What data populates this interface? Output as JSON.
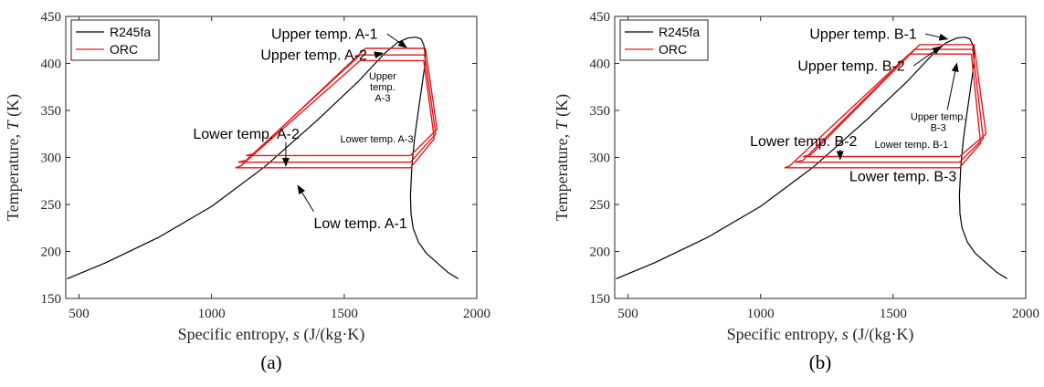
{
  "chart_data": [
    {
      "type": "line",
      "panel_label": "(a)",
      "xlabel": "Specific entropy, s (J/(kg·K)",
      "xlabel_parts": [
        "Specific entropy, ",
        "s",
        " (J/(kg·K)"
      ],
      "ylabel": "Temperature, T (K)",
      "ylabel_parts": [
        "Temperature, ",
        "T",
        " (K)"
      ],
      "xlim": [
        450,
        2000
      ],
      "ylim": [
        150,
        450
      ],
      "xticks": [
        500,
        1000,
        1500,
        2000
      ],
      "yticks": [
        150,
        200,
        250,
        300,
        350,
        400,
        450
      ],
      "grid": false,
      "legend_position": "top-left",
      "legend": [
        {
          "name": "R245fa",
          "color": "#000000"
        },
        {
          "name": "ORC",
          "color": "#e41a1c"
        }
      ],
      "dome": {
        "name": "R245fa",
        "color": "#000000",
        "x": [
          455,
          600,
          800,
          1000,
          1200,
          1400,
          1550,
          1650,
          1700,
          1740,
          1770,
          1790,
          1800,
          1805,
          1805,
          1795,
          1780,
          1765,
          1755,
          1750,
          1752,
          1760,
          1780,
          1810,
          1850,
          1890,
          1930
        ],
        "y": [
          171,
          188,
          215,
          248,
          290,
          340,
          380,
          410,
          422,
          427,
          428,
          426,
          420,
          410,
          400,
          380,
          350,
          320,
          290,
          260,
          240,
          225,
          210,
          198,
          188,
          178,
          171
        ]
      },
      "cycles": [
        {
          "name": "ORC",
          "color": "#e41a1c",
          "x": [
            1090,
            1110,
            1560,
            1615,
            1800,
            1840,
            1750,
            1090
          ],
          "y": [
            289,
            291,
            403,
            403,
            403,
            320,
            289,
            289
          ]
        },
        {
          "name": "ORC",
          "color": "#e41a1c",
          "x": [
            1100,
            1130,
            1560,
            1620,
            1803,
            1845,
            1750,
            1100
          ],
          "y": [
            295,
            297,
            409,
            409,
            409,
            325,
            295,
            295
          ]
        },
        {
          "name": "ORC",
          "color": "#e41a1c",
          "x": [
            1130,
            1160,
            1580,
            1630,
            1806,
            1850,
            1750,
            1130
          ],
          "y": [
            302,
            304,
            416,
            416,
            416,
            330,
            302,
            302
          ]
        }
      ],
      "annotations": [
        {
          "text": "Upper temp. A-1",
          "font_size": "large",
          "tx": 1225,
          "ty": 426,
          "ax": 1735,
          "ay": 417
        },
        {
          "text": "Upper temp. A-2",
          "font_size": "large",
          "tx": 1185,
          "ty": 404,
          "ax": 1645,
          "ay": 411
        },
        {
          "text": "Upper\ntemp.\nA-3",
          "font_size": "small",
          "tx": 1645,
          "ty": 383
        },
        {
          "text": "Lower temp. A-2",
          "font_size": "large",
          "tx": 930,
          "ty": 320,
          "ax": 1280,
          "ay": 291
        },
        {
          "text": "Lower temp. A-3",
          "font_size": "small",
          "tx": 1485,
          "ty": 316
        },
        {
          "text": "Low temp. A-1",
          "font_size": "large",
          "tx": 1385,
          "ty": 225,
          "ax": 1325,
          "ay": 270
        }
      ]
    },
    {
      "type": "line",
      "panel_label": "(b)",
      "xlabel": "Specific entropy, s (J/(kg·K)",
      "xlabel_parts": [
        "Specific entropy, ",
        "s",
        " (J/(kg·K)"
      ],
      "ylabel": "Temperature, T (K)",
      "ylabel_parts": [
        "Temperature, ",
        "T",
        " (K)"
      ],
      "xlim": [
        450,
        2000
      ],
      "ylim": [
        150,
        450
      ],
      "xticks": [
        500,
        1000,
        1500,
        2000
      ],
      "yticks": [
        150,
        200,
        250,
        300,
        350,
        400,
        450
      ],
      "grid": false,
      "legend_position": "top-left",
      "legend": [
        {
          "name": "R245fa",
          "color": "#000000"
        },
        {
          "name": "ORC",
          "color": "#e41a1c"
        }
      ],
      "dome": {
        "name": "R245fa",
        "color": "#000000",
        "x": [
          455,
          600,
          800,
          1000,
          1200,
          1400,
          1550,
          1650,
          1700,
          1740,
          1770,
          1790,
          1800,
          1805,
          1805,
          1795,
          1780,
          1765,
          1755,
          1750,
          1752,
          1760,
          1780,
          1810,
          1850,
          1890,
          1930
        ],
        "y": [
          171,
          188,
          215,
          248,
          290,
          340,
          380,
          410,
          422,
          427,
          428,
          426,
          420,
          410,
          400,
          380,
          350,
          320,
          290,
          260,
          240,
          225,
          210,
          198,
          188,
          178,
          171
        ]
      },
      "cycles": [
        {
          "name": "ORC",
          "color": "#e41a1c",
          "x": [
            1090,
            1110,
            1560,
            1620,
            1795,
            1830,
            1750,
            1090
          ],
          "y": [
            289,
            291,
            410,
            410,
            410,
            315,
            289,
            289
          ]
        },
        {
          "name": "ORC",
          "color": "#e41a1c",
          "x": [
            1130,
            1160,
            1580,
            1640,
            1800,
            1840,
            1750,
            1130
          ],
          "y": [
            295,
            297,
            415,
            415,
            415,
            320,
            295,
            295
          ]
        },
        {
          "name": "ORC",
          "color": "#e41a1c",
          "x": [
            1160,
            1190,
            1600,
            1660,
            1805,
            1850,
            1750,
            1160
          ],
          "y": [
            301,
            303,
            420,
            420,
            420,
            325,
            301,
            301
          ]
        }
      ],
      "annotations": [
        {
          "text": "Upper temp. B-1",
          "font_size": "large",
          "tx": 1185,
          "ty": 426,
          "ax": 1705,
          "ay": 426
        },
        {
          "text": "Upper temp. B-2",
          "font_size": "large",
          "tx": 1140,
          "ty": 392,
          "ax": 1680,
          "ay": 418
        },
        {
          "text": "Upper temp.\nB-3",
          "font_size": "small",
          "tx": 1670,
          "ty": 340,
          "ax": 1740,
          "ay": 400
        },
        {
          "text": "Lower temp. B-2",
          "font_size": "large",
          "tx": 960,
          "ty": 312,
          "ax": 1300,
          "ay": 298
        },
        {
          "text": "Lower temp. B-1",
          "font_size": "small",
          "tx": 1430,
          "ty": 310
        },
        {
          "text": "Lower temp. B-3",
          "font_size": "large",
          "tx": 1335,
          "ty": 275
        }
      ]
    }
  ]
}
